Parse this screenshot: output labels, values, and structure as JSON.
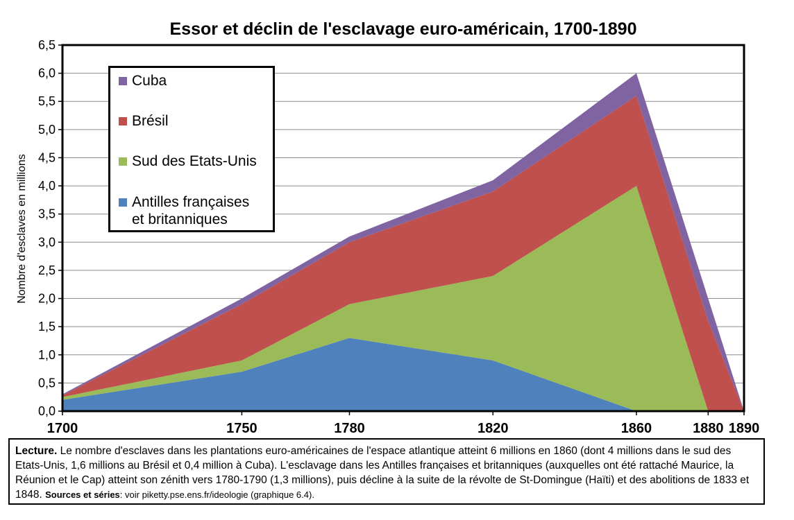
{
  "chart_data": {
    "type": "area",
    "stacked": true,
    "title": "Essor et déclin de l'esclavage euro-américain, 1700-1890",
    "ylabel": "Nombre d'esclaves en millions",
    "xlabel": "",
    "x": [
      "1700",
      "1750",
      "1780",
      "1820",
      "1860",
      "1880",
      "1890"
    ],
    "ylim": [
      0,
      6.5
    ],
    "y_ticks": [
      "0,0",
      "0,5",
      "1,0",
      "1,5",
      "2,0",
      "2,5",
      "3,0",
      "3,5",
      "4,0",
      "4,5",
      "5,0",
      "5,5",
      "6,0",
      "6,5"
    ],
    "grid": true,
    "legend_position": "top-left",
    "series": [
      {
        "name": "Antilles françaises et britanniques",
        "color": "#4f81bd",
        "values": [
          0.2,
          0.7,
          1.3,
          0.9,
          0.0,
          0.0,
          0.0
        ]
      },
      {
        "name": "Sud des Etats-Unis",
        "color": "#9bbb59",
        "values": [
          0.05,
          0.2,
          0.6,
          1.5,
          4.0,
          0.0,
          0.0
        ]
      },
      {
        "name": "Brésil",
        "color": "#c0504d",
        "values": [
          0.03,
          1.0,
          1.1,
          1.5,
          1.6,
          1.6,
          0.0
        ]
      },
      {
        "name": "Cuba",
        "color": "#8064a2",
        "values": [
          0.02,
          0.1,
          0.1,
          0.2,
          0.4,
          0.4,
          0.0
        ]
      }
    ]
  },
  "legend": {
    "cuba": "Cuba",
    "bresil": "Brésil",
    "sud": "Sud des Etats-Unis",
    "antilles_line1": "Antilles françaises",
    "antilles_line2": "et britanniques"
  },
  "note": {
    "lecture_label": "Lecture.",
    "text": " Le nombre d'esclaves dans les plantations euro-américaines de l'espace atlantique atteint 6 millions en 1860 (dont 4 millions dans le sud des Etats-Unis, 1,6 millions au Brésil et 0,4 million à Cuba). L'esclavage dans les Antilles françaises et britanniques (auxquelles ont été rattaché Maurice, la Réunion et le Cap) atteint son zénith vers 1780-1790 (1,3 millions), puis décline à la suite de la révolte de St-Domingue (Haïti) et des abolitions de 1833 et 1848. ",
    "sources_label": "Sources et séries",
    "sources_text": ": voir piketty.pse.ens.fr/ideologie (graphique 6.4)."
  }
}
